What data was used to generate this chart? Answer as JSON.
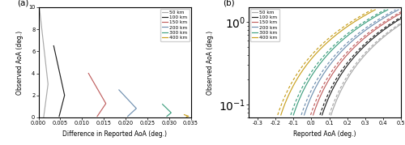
{
  "legend_labels": [
    "50 km",
    "100 km",
    "150 km",
    "200 km",
    "300 km",
    "400 km"
  ],
  "colors": [
    "#aaaaaa",
    "#222222",
    "#c06060",
    "#7090b0",
    "#40a080",
    "#c8a020"
  ],
  "panel_a": {
    "xlabel": "Difference in Reported AoA (deg.)",
    "ylabel": "Observed AoA (deg.)",
    "xlim": [
      0.0,
      0.035
    ],
    "ylim": [
      0.0,
      10.0
    ],
    "xticks": [
      0.0,
      0.005,
      0.01,
      0.015,
      0.02,
      0.025,
      0.03,
      0.035
    ],
    "yticks": [
      0,
      2,
      4,
      6,
      8,
      10
    ],
    "curves": [
      {
        "x_base": 0.0002,
        "x_peak": 0.0022,
        "aoa_max": 10.0,
        "aoa_cutoff": 0.05
      },
      {
        "x_base": 0.0035,
        "x_peak": 0.006,
        "aoa_max": 6.5,
        "aoa_cutoff": 0.1
      },
      {
        "x_base": 0.0115,
        "x_peak": 0.0155,
        "aoa_max": 4.0,
        "aoa_cutoff": 0.1
      },
      {
        "x_base": 0.0185,
        "x_peak": 0.0225,
        "aoa_max": 2.5,
        "aoa_cutoff": 0.1
      },
      {
        "x_base": 0.0285,
        "x_peak": 0.0305,
        "aoa_max": 1.2,
        "aoa_cutoff": 0.1
      },
      {
        "x_base": 0.0335,
        "x_peak": 0.0345,
        "aoa_max": 0.25,
        "aoa_cutoff": 0.05
      }
    ]
  },
  "panel_b": {
    "xlabel": "Reported AoA (deg.)",
    "ylabel": "Observed AoA (deg.)",
    "xlim": [
      -0.35,
      0.5
    ],
    "ylim_log": [
      0.07,
      1.5
    ],
    "xticks": [
      -0.3,
      -0.2,
      -0.1,
      0.0,
      0.1,
      0.2,
      0.3,
      0.4,
      0.5
    ],
    "curves": [
      {
        "x_shift_solid": 0.0,
        "x_shift_dashed": -0.01
      },
      {
        "x_shift_solid": -0.05,
        "x_shift_dashed": -0.062
      },
      {
        "x_shift_solid": -0.1,
        "x_shift_dashed": -0.114
      },
      {
        "x_shift_solid": -0.15,
        "x_shift_dashed": -0.166
      },
      {
        "x_shift_solid": -0.21,
        "x_shift_dashed": -0.225
      },
      {
        "x_shift_solid": -0.28,
        "x_shift_dashed": -0.298
      }
    ]
  },
  "label_a": "(a)",
  "label_b": "(b)"
}
